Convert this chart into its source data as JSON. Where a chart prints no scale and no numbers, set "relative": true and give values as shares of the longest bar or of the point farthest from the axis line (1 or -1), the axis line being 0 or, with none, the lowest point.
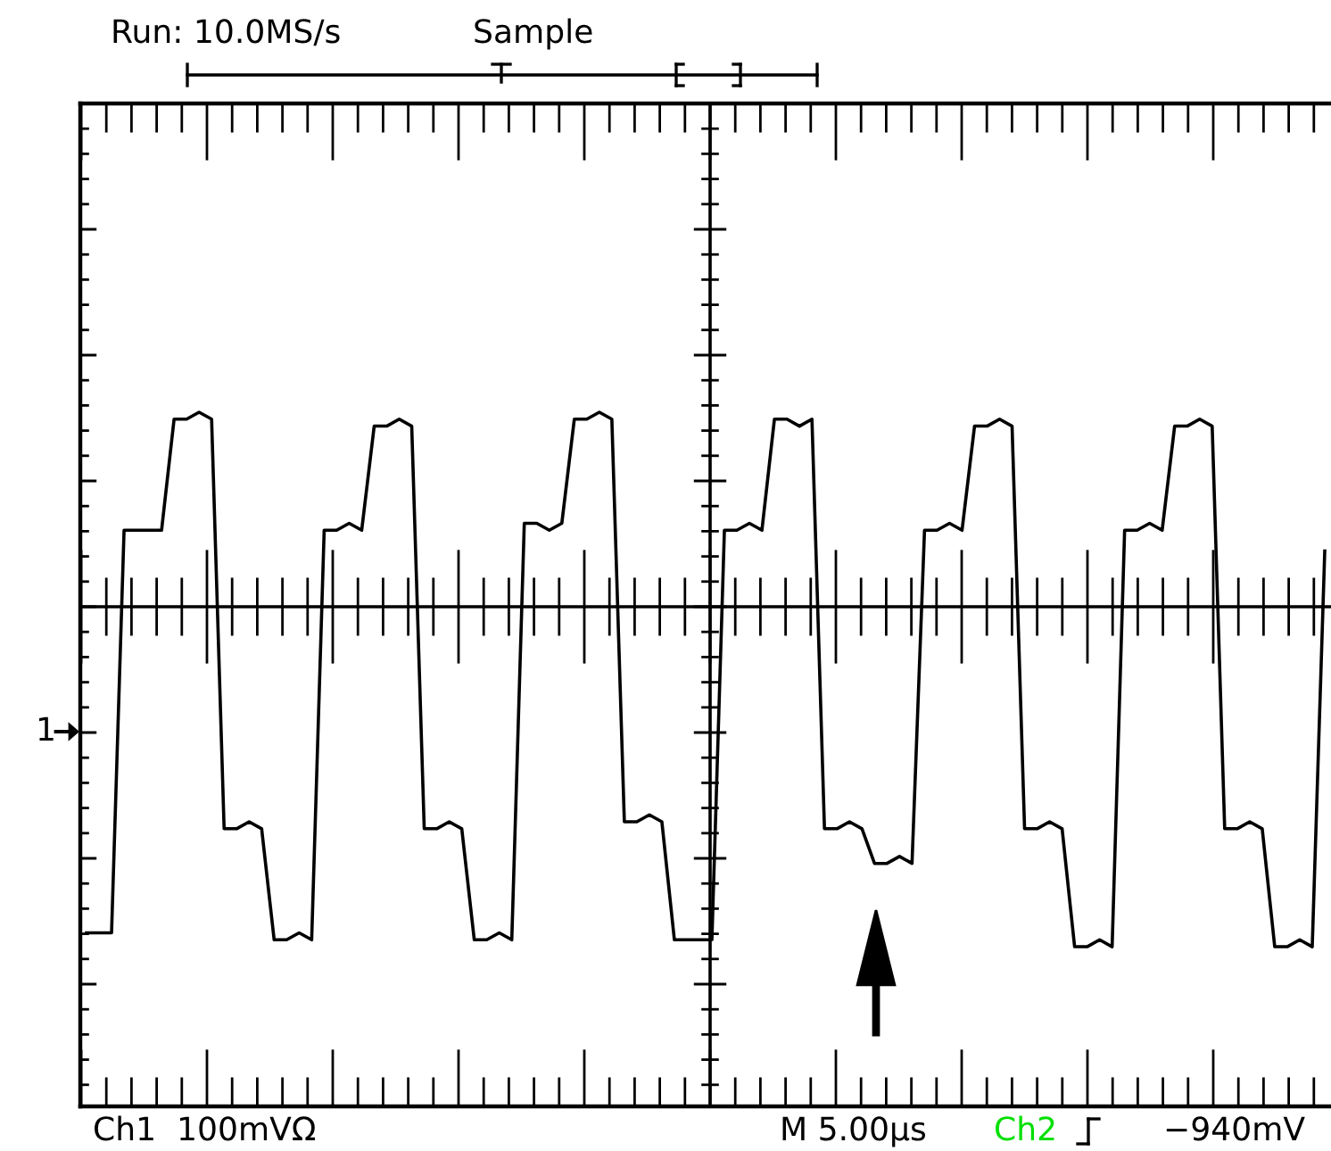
{
  "chart_data": {
    "type": "line",
    "relative": true,
    "categories": [
      null,
      null,
      null,
      null,
      null,
      null,
      null,
      null,
      null,
      null,
      null,
      null,
      null,
      null,
      null,
      null,
      null,
      null,
      null,
      null,
      null,
      null,
      null,
      null,
      null,
      null,
      null,
      null,
      null,
      null,
      null,
      null,
      null,
      null,
      null,
      null,
      null,
      null,
      null,
      null,
      null,
      null,
      null,
      null,
      null,
      null,
      null,
      null,
      null,
      null,
      null,
      null,
      null,
      null,
      null,
      null,
      null,
      null,
      null,
      null,
      null,
      null,
      null,
      null,
      null,
      null,
      null,
      null,
      null,
      null,
      null,
      null,
      null,
      null,
      null,
      null,
      null,
      null,
      null,
      null,
      null,
      null,
      null,
      null,
      null,
      null,
      null,
      null,
      null,
      null,
      null,
      null,
      null,
      null,
      null,
      null,
      null,
      null,
      null,
      null
    ],
    "series": [
      {
        "color": "#000000",
        "values": [
          0.25,
          0.25,
          0.25,
          0.83,
          0.83,
          0.83,
          0.83,
          0.99,
          0.99,
          1.0,
          0.99,
          0.4,
          0.4,
          0.41,
          0.4,
          0.24,
          0.24,
          0.25,
          0.24,
          0.83,
          0.83,
          0.84,
          0.83,
          0.98,
          0.98,
          0.99,
          0.98,
          0.4,
          0.4,
          0.41,
          0.4,
          0.24,
          0.24,
          0.25,
          0.24,
          0.84,
          0.84,
          0.83,
          0.84,
          0.99,
          0.99,
          1.0,
          0.99,
          0.41,
          0.41,
          0.42,
          0.41,
          0.24,
          0.24,
          0.24,
          0.24,
          0.83,
          0.83,
          0.84,
          0.83,
          0.99,
          0.99,
          0.98,
          0.99,
          0.4,
          0.4,
          0.41,
          0.4,
          0.35,
          0.35,
          0.36,
          0.35,
          0.83,
          0.83,
          0.84,
          0.83,
          0.98,
          0.98,
          0.99,
          0.98,
          0.4,
          0.4,
          0.41,
          0.4,
          0.23,
          0.23,
          0.24,
          0.23,
          0.83,
          0.83,
          0.84,
          0.83,
          0.98,
          0.98,
          0.99,
          0.98,
          0.4,
          0.4,
          0.41,
          0.4,
          0.23,
          0.23,
          0.24,
          0.23,
          0.8
        ]
      }
    ],
    "annotations": [
      "Run: 10.0MS/s",
      "Sample",
      "1",
      "Ch1  100mVΩ",
      "M 5.00µs",
      "Ch2",
      "−940mV"
    ],
    "legend": false,
    "marker": "none",
    "line_style": "solid"
  }
}
